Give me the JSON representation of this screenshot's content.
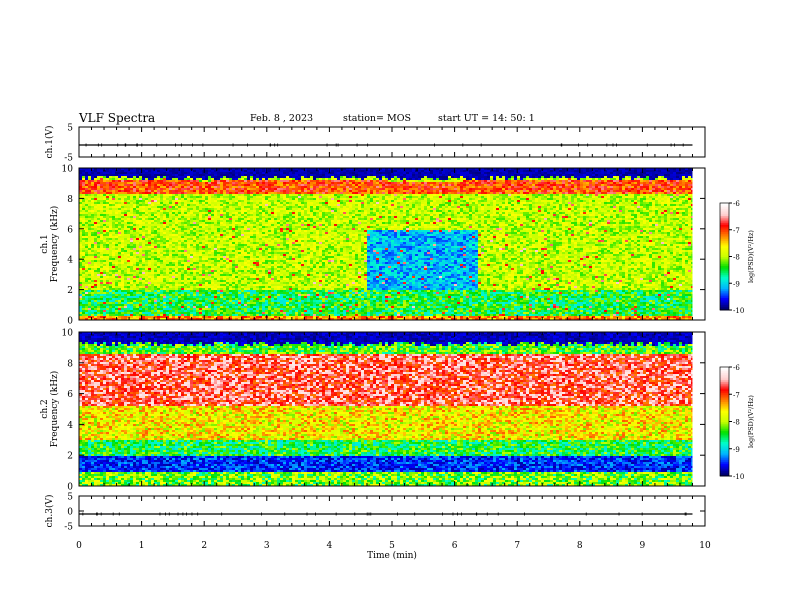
{
  "header": {
    "title": "VLF Spectra",
    "date": "Feb. 8 , 2023",
    "station": "station= MOS",
    "start": "start UT = 14: 50: 1"
  },
  "colors": {
    "spectrum_scale": [
      "#000060",
      "#0000ff",
      "#00b4ff",
      "#00ffcc",
      "#00e000",
      "#c8ff00",
      "#ffff00",
      "#ff8000",
      "#ff0000",
      "#ffd0d0",
      "#ffffff"
    ]
  },
  "chart_data": [
    {
      "type": "line",
      "panel": "ch1-waveform",
      "ylabel": "ch.1(V)",
      "ylim": [
        -5,
        5
      ],
      "yticks": [
        5,
        -5
      ],
      "xlim": [
        0,
        10
      ],
      "series": [
        {
          "x": [
            0,
            9.8
          ],
          "y": [
            -1,
            -1
          ]
        }
      ]
    },
    {
      "type": "heatmap",
      "panel": "ch1-spectrogram",
      "ylabel": [
        "ch.1",
        "Frequency (kHz)"
      ],
      "ylim": [
        0,
        10
      ],
      "yticks": [
        0,
        2,
        4,
        6,
        8,
        10
      ],
      "xlim": [
        0,
        10
      ],
      "colorbar": {
        "label": "log(PSD)(V²/Hz)",
        "ticks": [
          -6,
          -7,
          -8,
          -9,
          -10
        ],
        "range": [
          -10,
          -6
        ]
      },
      "profile": [
        {
          "t": 0.0,
          "top": 9.3,
          "hot": 8.5,
          "warm": 9.0,
          "quiet": -7.8
        },
        {
          "t": 1.0,
          "top": 9.3,
          "hot": 8.5,
          "warm": 9.0,
          "quiet": -7.8
        },
        {
          "t": 2.0,
          "top": 9.2,
          "hot": 8.4,
          "warm": 9.0,
          "quiet": -7.8
        },
        {
          "t": 3.0,
          "top": 9.3,
          "hot": 8.5,
          "warm": 9.0,
          "quiet": -7.8
        },
        {
          "t": 4.0,
          "top": 9.3,
          "hot": 8.5,
          "warm": 9.0,
          "quiet": -7.9
        },
        {
          "t": 5.0,
          "top": 9.2,
          "hot": 8.5,
          "warm": 9.0,
          "quiet": -8.9
        },
        {
          "t": 6.0,
          "top": 9.2,
          "hot": 8.5,
          "warm": 9.0,
          "quiet": -8.9
        },
        {
          "t": 7.0,
          "top": 9.3,
          "hot": 8.5,
          "warm": 9.0,
          "quiet": -7.8
        },
        {
          "t": 8.0,
          "top": 9.3,
          "hot": 8.5,
          "warm": 9.0,
          "quiet": -7.8
        },
        {
          "t": 9.0,
          "top": 9.3,
          "hot": 8.5,
          "warm": 9.0,
          "quiet": -7.8
        },
        {
          "t": 9.8,
          "top": 9.3,
          "hot": 8.5,
          "warm": 9.0,
          "quiet": -7.8
        }
      ]
    },
    {
      "type": "heatmap",
      "panel": "ch2-spectrogram",
      "ylabel": [
        "ch.2",
        "Frequency (kHz)"
      ],
      "ylim": [
        0,
        10
      ],
      "yticks": [
        0,
        2,
        4,
        6,
        8,
        10
      ],
      "xlim": [
        0,
        10
      ],
      "colorbar": {
        "label": "log(PSD)(V²/Hz)",
        "ticks": [
          -6,
          -7,
          -8,
          -9,
          -10
        ],
        "range": [
          -10,
          -6
        ]
      },
      "profile": [
        {
          "t": 0.0,
          "top": 9.3,
          "hot_lo": 5.5,
          "hot_hi": 8.7,
          "dark_band": [
            1.0,
            2.0
          ]
        },
        {
          "t": 5.0,
          "top": 9.3,
          "hot_lo": 5.5,
          "hot_hi": 8.7,
          "dark_band": [
            1.0,
            2.0
          ]
        },
        {
          "t": 9.8,
          "top": 9.3,
          "hot_lo": 5.5,
          "hot_hi": 8.7,
          "dark_band": [
            1.0,
            2.0
          ]
        }
      ]
    },
    {
      "type": "line",
      "panel": "ch3-waveform",
      "ylabel": "ch.3(V)",
      "ylim": [
        -5,
        5
      ],
      "yticks": [
        5,
        0,
        -5
      ],
      "xlim": [
        0,
        10
      ],
      "xlabel": "Time (min)",
      "xticks": [
        0,
        1,
        2,
        3,
        4,
        5,
        6,
        7,
        8,
        9,
        10
      ],
      "series": [
        {
          "x": [
            0,
            9.8
          ],
          "y": [
            -1,
            -1
          ]
        }
      ]
    }
  ]
}
